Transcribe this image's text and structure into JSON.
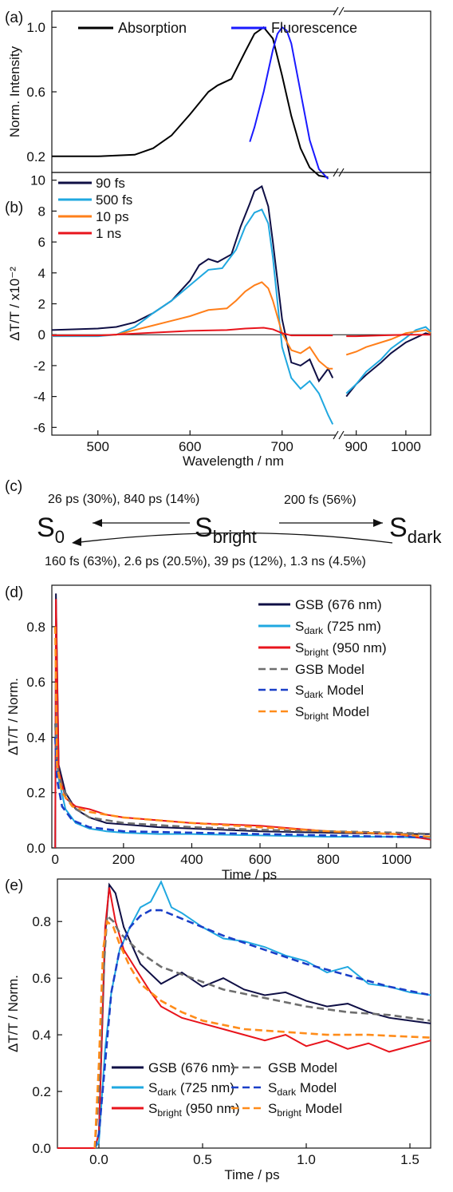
{
  "chart_data": [
    {
      "panel": "(a)",
      "type": "line",
      "ylabel": "Norm. Intensity",
      "ylim": [
        0.1,
        1.1
      ],
      "yticks": [
        "0.2",
        "0.6",
        "1.0"
      ],
      "xlim": [
        450,
        1050
      ],
      "axis_break": [
        760,
        870
      ],
      "legend": [
        {
          "label": "Absorption",
          "color": "#000000"
        },
        {
          "label": "Fluorescence",
          "color": "#1a1aff"
        }
      ],
      "series": [
        {
          "name": "Absorption",
          "color": "#000000",
          "x": [
            450,
            500,
            540,
            560,
            580,
            600,
            620,
            630,
            645,
            660,
            670,
            680,
            690,
            700,
            710,
            720,
            730,
            740,
            750
          ],
          "y": [
            0.2,
            0.2,
            0.21,
            0.25,
            0.33,
            0.46,
            0.6,
            0.64,
            0.68,
            0.85,
            0.96,
            1.0,
            0.93,
            0.7,
            0.45,
            0.25,
            0.13,
            0.08,
            0.07
          ]
        },
        {
          "name": "Fluorescence",
          "color": "#1a1aff",
          "x": [
            665,
            670,
            680,
            690,
            695,
            700,
            705,
            710,
            720,
            730,
            740,
            750
          ],
          "y": [
            0.29,
            0.38,
            0.6,
            0.86,
            0.96,
            1.0,
            0.98,
            0.9,
            0.6,
            0.3,
            0.12,
            0.06
          ]
        }
      ]
    },
    {
      "panel": "(b)",
      "type": "line",
      "xlabel": "Wavelength / nm",
      "ylabel": "ΔT/T / x10⁻²",
      "ylim": [
        -6.5,
        10.5
      ],
      "yticks": [
        "-6",
        "-4",
        "-2",
        "0",
        "2",
        "4",
        "6",
        "8",
        "10"
      ],
      "xticks": [
        "500",
        "600",
        "700",
        "900",
        "1000"
      ],
      "xlim": [
        450,
        1050
      ],
      "axis_break": [
        760,
        870
      ],
      "legend": [
        {
          "label": "90 fs",
          "color": "#0f0f45"
        },
        {
          "label": "500 fs",
          "color": "#20a8e0"
        },
        {
          "label": "10 ps",
          "color": "#ff7f1a"
        },
        {
          "label": "1 ns",
          "color": "#e8141c"
        }
      ],
      "series": [
        {
          "name": "90 fs",
          "color": "#0f0f45",
          "x": [
            450,
            500,
            520,
            540,
            560,
            580,
            600,
            610,
            620,
            630,
            645,
            655,
            665,
            670,
            678,
            685,
            690,
            700,
            710,
            720,
            730,
            740,
            750,
            755,
            880,
            900,
            920,
            950,
            970,
            1000,
            1020,
            1040,
            1050
          ],
          "y": [
            0.3,
            0.4,
            0.5,
            0.8,
            1.4,
            2.2,
            3.5,
            4.5,
            4.9,
            4.7,
            5.2,
            7.0,
            8.5,
            9.3,
            9.6,
            8.3,
            6.0,
            1.0,
            -1.8,
            -2.0,
            -1.6,
            -3.0,
            -2.2,
            -2.8,
            -4.0,
            -3.2,
            -2.6,
            -1.8,
            -1.2,
            -0.5,
            -0.2,
            0.1,
            0.0
          ]
        },
        {
          "name": "500 fs",
          "color": "#20a8e0",
          "x": [
            450,
            500,
            520,
            540,
            560,
            580,
            600,
            620,
            635,
            650,
            660,
            670,
            678,
            685,
            690,
            700,
            710,
            720,
            730,
            740,
            750,
            755,
            880,
            900,
            920,
            950,
            970,
            1000,
            1020,
            1040,
            1050
          ],
          "y": [
            -0.1,
            -0.1,
            0.0,
            0.5,
            1.4,
            2.2,
            3.2,
            4.2,
            4.3,
            5.5,
            7.0,
            7.9,
            8.1,
            7.2,
            5.0,
            -0.8,
            -2.8,
            -3.5,
            -3.0,
            -3.8,
            -5.2,
            -5.8,
            -3.8,
            -3.2,
            -2.4,
            -1.6,
            -0.9,
            -0.2,
            0.3,
            0.5,
            0.2
          ]
        },
        {
          "name": "10 ps",
          "color": "#ff7f1a",
          "x": [
            450,
            500,
            520,
            540,
            560,
            580,
            600,
            620,
            640,
            650,
            660,
            670,
            678,
            685,
            690,
            700,
            710,
            720,
            730,
            740,
            750,
            755,
            880,
            900,
            920,
            950,
            970,
            1000,
            1020,
            1040,
            1050
          ],
          "y": [
            -0.05,
            -0.05,
            0.0,
            0.3,
            0.6,
            0.9,
            1.2,
            1.6,
            1.7,
            2.2,
            2.8,
            3.2,
            3.4,
            3.0,
            2.2,
            0.1,
            -1.0,
            -1.2,
            -0.8,
            -1.7,
            -2.2,
            -2.2,
            -1.3,
            -1.1,
            -0.8,
            -0.5,
            -0.3,
            0.1,
            0.2,
            0.3,
            0.1
          ]
        },
        {
          "name": "1 ns",
          "color": "#e8141c",
          "x": [
            450,
            500,
            550,
            600,
            640,
            660,
            680,
            690,
            700,
            710,
            720,
            740,
            755,
            880,
            900,
            950,
            1000,
            1050
          ],
          "y": [
            -0.05,
            -0.05,
            0.1,
            0.25,
            0.3,
            0.4,
            0.45,
            0.35,
            0.1,
            -0.05,
            -0.05,
            -0.05,
            -0.05,
            -0.1,
            -0.1,
            -0.05,
            0.0,
            0.0
          ]
        }
      ]
    },
    {
      "panel": "(d)",
      "type": "line",
      "xlabel": "Time / ps",
      "ylabel": "ΔT/T / Norm.",
      "xlim": [
        -10,
        1100
      ],
      "ylim": [
        0.0,
        0.95
      ],
      "xticks": [
        "0",
        "200",
        "400",
        "600",
        "800",
        "1000"
      ],
      "yticks": [
        "0.0",
        "0.2",
        "0.4",
        "0.6",
        "0.8"
      ],
      "legend": [
        {
          "label": "GSB (676 nm)",
          "color": "#0f0f45",
          "dashed": false
        },
        {
          "label": "S",
          "sub": "dark",
          "rest": " (725 nm)",
          "color": "#20a8e0",
          "dashed": false
        },
        {
          "label": "S",
          "sub": "bright",
          "rest": " (950 nm)",
          "color": "#e8141c",
          "dashed": false
        },
        {
          "label": "GSB Model",
          "color": "#6e6e6e",
          "dashed": true
        },
        {
          "label": "S",
          "sub": "dark",
          "rest": " Model",
          "color": "#1a3fc8",
          "dashed": true
        },
        {
          "label": "S",
          "sub": "bright",
          "rest": " Model",
          "color": "#ff8c1a",
          "dashed": true
        }
      ],
      "series": [
        {
          "name": "GSB (676 nm)",
          "color": "#0f0f45",
          "x": [
            0,
            2,
            10,
            30,
            60,
            100,
            150,
            200,
            300,
            400,
            600,
            800,
            1000,
            1100
          ],
          "y": [
            0.0,
            0.92,
            0.3,
            0.2,
            0.14,
            0.11,
            0.09,
            0.085,
            0.075,
            0.07,
            0.06,
            0.055,
            0.05,
            0.05
          ]
        },
        {
          "name": "Sdark (725 nm)",
          "color": "#20a8e0",
          "x": [
            0,
            2,
            10,
            30,
            60,
            100,
            150,
            200,
            300,
            400,
            600,
            800,
            1000,
            1100
          ],
          "y": [
            0.0,
            0.6,
            0.25,
            0.14,
            0.09,
            0.07,
            0.06,
            0.055,
            0.05,
            0.05,
            0.045,
            0.04,
            0.04,
            0.035
          ]
        },
        {
          "name": "Sbright (950 nm)",
          "color": "#e8141c",
          "x": [
            0,
            2,
            10,
            30,
            60,
            100,
            150,
            200,
            300,
            400,
            600,
            800,
            1000,
            1100
          ],
          "y": [
            0.0,
            0.9,
            0.28,
            0.18,
            0.15,
            0.14,
            0.12,
            0.11,
            0.1,
            0.09,
            0.08,
            0.06,
            0.05,
            0.03
          ]
        },
        {
          "name": "GSB Model",
          "color": "#6e6e6e",
          "dashed": true,
          "x": [
            0,
            5,
            20,
            50,
            100,
            200,
            400,
            600,
            800,
            1000,
            1100
          ],
          "y": [
            0.45,
            0.3,
            0.22,
            0.15,
            0.11,
            0.09,
            0.075,
            0.065,
            0.06,
            0.055,
            0.05
          ]
        },
        {
          "name": "Sdark Model",
          "color": "#1a3fc8",
          "dashed": true,
          "x": [
            0,
            5,
            20,
            50,
            100,
            200,
            400,
            600,
            800,
            1000,
            1100
          ],
          "y": [
            0.4,
            0.25,
            0.15,
            0.1,
            0.075,
            0.06,
            0.055,
            0.05,
            0.045,
            0.04,
            0.04
          ]
        },
        {
          "name": "Sbright Model",
          "color": "#ff8c1a",
          "dashed": true,
          "x": [
            0,
            5,
            20,
            50,
            100,
            200,
            400,
            600,
            800,
            1000,
            1100
          ],
          "y": [
            0.8,
            0.3,
            0.2,
            0.15,
            0.13,
            0.11,
            0.09,
            0.075,
            0.06,
            0.05,
            0.04
          ]
        }
      ]
    },
    {
      "panel": "(e)",
      "type": "line",
      "xlabel": "Time / ps",
      "ylabel": "ΔT/T / Norm.",
      "xlim": [
        -0.2,
        1.6
      ],
      "ylim": [
        0.0,
        0.95
      ],
      "xticks": [
        "0.0",
        "0.5",
        "1.0",
        "1.5"
      ],
      "yticks": [
        "0.0",
        "0.2",
        "0.4",
        "0.6",
        "0.8"
      ],
      "legend": [
        {
          "label": "GSB (676 nm)",
          "color": "#0f0f45",
          "dashed": false
        },
        {
          "label": "GSB Model",
          "color": "#6e6e6e",
          "dashed": true
        },
        {
          "label": "S",
          "sub": "dark",
          "rest": " (725 nm)",
          "color": "#20a8e0",
          "dashed": false
        },
        {
          "label": "S",
          "sub": "dark",
          "rest": " Model",
          "color": "#1a3fc8",
          "dashed": true
        },
        {
          "label": "S",
          "sub": "bright",
          "rest": " (950 nm)",
          "color": "#e8141c",
          "dashed": false
        },
        {
          "label": "S",
          "sub": "bright",
          "rest": " Model",
          "color": "#ff8c1a",
          "dashed": true
        }
      ],
      "series": [
        {
          "name": "GSB (676 nm)",
          "color": "#0f0f45",
          "x": [
            -0.2,
            -0.02,
            0.0,
            0.03,
            0.05,
            0.08,
            0.12,
            0.2,
            0.3,
            0.4,
            0.5,
            0.6,
            0.7,
            0.8,
            0.9,
            1.0,
            1.1,
            1.2,
            1.3,
            1.4,
            1.5,
            1.6
          ],
          "y": [
            0.0,
            0.0,
            0.05,
            0.75,
            0.93,
            0.9,
            0.78,
            0.65,
            0.58,
            0.62,
            0.57,
            0.6,
            0.56,
            0.54,
            0.55,
            0.52,
            0.5,
            0.51,
            0.48,
            0.46,
            0.45,
            0.44
          ]
        },
        {
          "name": "Sdark (725 nm)",
          "color": "#20a8e0",
          "x": [
            -0.2,
            -0.02,
            0.0,
            0.03,
            0.06,
            0.1,
            0.15,
            0.2,
            0.25,
            0.3,
            0.35,
            0.4,
            0.5,
            0.6,
            0.7,
            0.8,
            0.9,
            1.0,
            1.1,
            1.2,
            1.3,
            1.4,
            1.5,
            1.6
          ],
          "y": [
            0.0,
            0.0,
            0.02,
            0.35,
            0.55,
            0.7,
            0.78,
            0.85,
            0.87,
            0.94,
            0.85,
            0.83,
            0.78,
            0.74,
            0.73,
            0.71,
            0.68,
            0.66,
            0.62,
            0.64,
            0.58,
            0.57,
            0.55,
            0.54
          ]
        },
        {
          "name": "Sbright (950 nm)",
          "color": "#e8141c",
          "x": [
            -0.2,
            -0.02,
            0.0,
            0.03,
            0.05,
            0.08,
            0.12,
            0.18,
            0.25,
            0.3,
            0.4,
            0.5,
            0.6,
            0.7,
            0.8,
            0.9,
            1.0,
            1.1,
            1.2,
            1.3,
            1.4,
            1.5,
            1.6
          ],
          "y": [
            0.0,
            0.0,
            0.05,
            0.78,
            0.92,
            0.8,
            0.7,
            0.63,
            0.55,
            0.5,
            0.46,
            0.44,
            0.42,
            0.4,
            0.38,
            0.4,
            0.36,
            0.38,
            0.35,
            0.37,
            0.34,
            0.36,
            0.38
          ]
        },
        {
          "name": "GSB Model",
          "color": "#6e6e6e",
          "dashed": true,
          "x": [
            -0.02,
            0.0,
            0.02,
            0.04,
            0.07,
            0.1,
            0.2,
            0.3,
            0.45,
            0.6,
            0.8,
            1.0,
            1.2,
            1.4,
            1.6
          ],
          "y": [
            0.0,
            0.2,
            0.6,
            0.82,
            0.8,
            0.76,
            0.69,
            0.64,
            0.6,
            0.56,
            0.53,
            0.5,
            0.48,
            0.47,
            0.45
          ]
        },
        {
          "name": "Sdark Model",
          "color": "#1a3fc8",
          "dashed": true,
          "x": [
            -0.02,
            0.0,
            0.03,
            0.06,
            0.1,
            0.15,
            0.2,
            0.25,
            0.3,
            0.4,
            0.6,
            0.8,
            1.0,
            1.2,
            1.4,
            1.6
          ],
          "y": [
            0.0,
            0.05,
            0.3,
            0.55,
            0.7,
            0.78,
            0.82,
            0.84,
            0.84,
            0.81,
            0.75,
            0.7,
            0.65,
            0.61,
            0.57,
            0.54
          ]
        },
        {
          "name": "Sbright Model",
          "color": "#ff8c1a",
          "dashed": true,
          "x": [
            -0.02,
            0.0,
            0.02,
            0.04,
            0.07,
            0.1,
            0.15,
            0.2,
            0.3,
            0.4,
            0.5,
            0.7,
            0.9,
            1.1,
            1.3,
            1.6
          ],
          "y": [
            0.0,
            0.3,
            0.7,
            0.8,
            0.78,
            0.72,
            0.64,
            0.58,
            0.52,
            0.48,
            0.45,
            0.42,
            0.41,
            0.4,
            0.4,
            0.39
          ]
        }
      ]
    }
  ],
  "scheme": {
    "label": "(c)",
    "s0": {
      "main": "S",
      "sub": "0"
    },
    "sbright": {
      "main": "S",
      "sub": "bright"
    },
    "sdark": {
      "main": "S",
      "sub": "dark"
    },
    "rate_bright_to_s0": "26 ps (30%), 840 ps (14%)",
    "rate_bright_to_dark": "200 fs (56%)",
    "rate_dark_to_s0": "160 fs (63%), 2.6 ps (20.5%), 39 ps (12%), 1.3 ns (4.5%)"
  }
}
